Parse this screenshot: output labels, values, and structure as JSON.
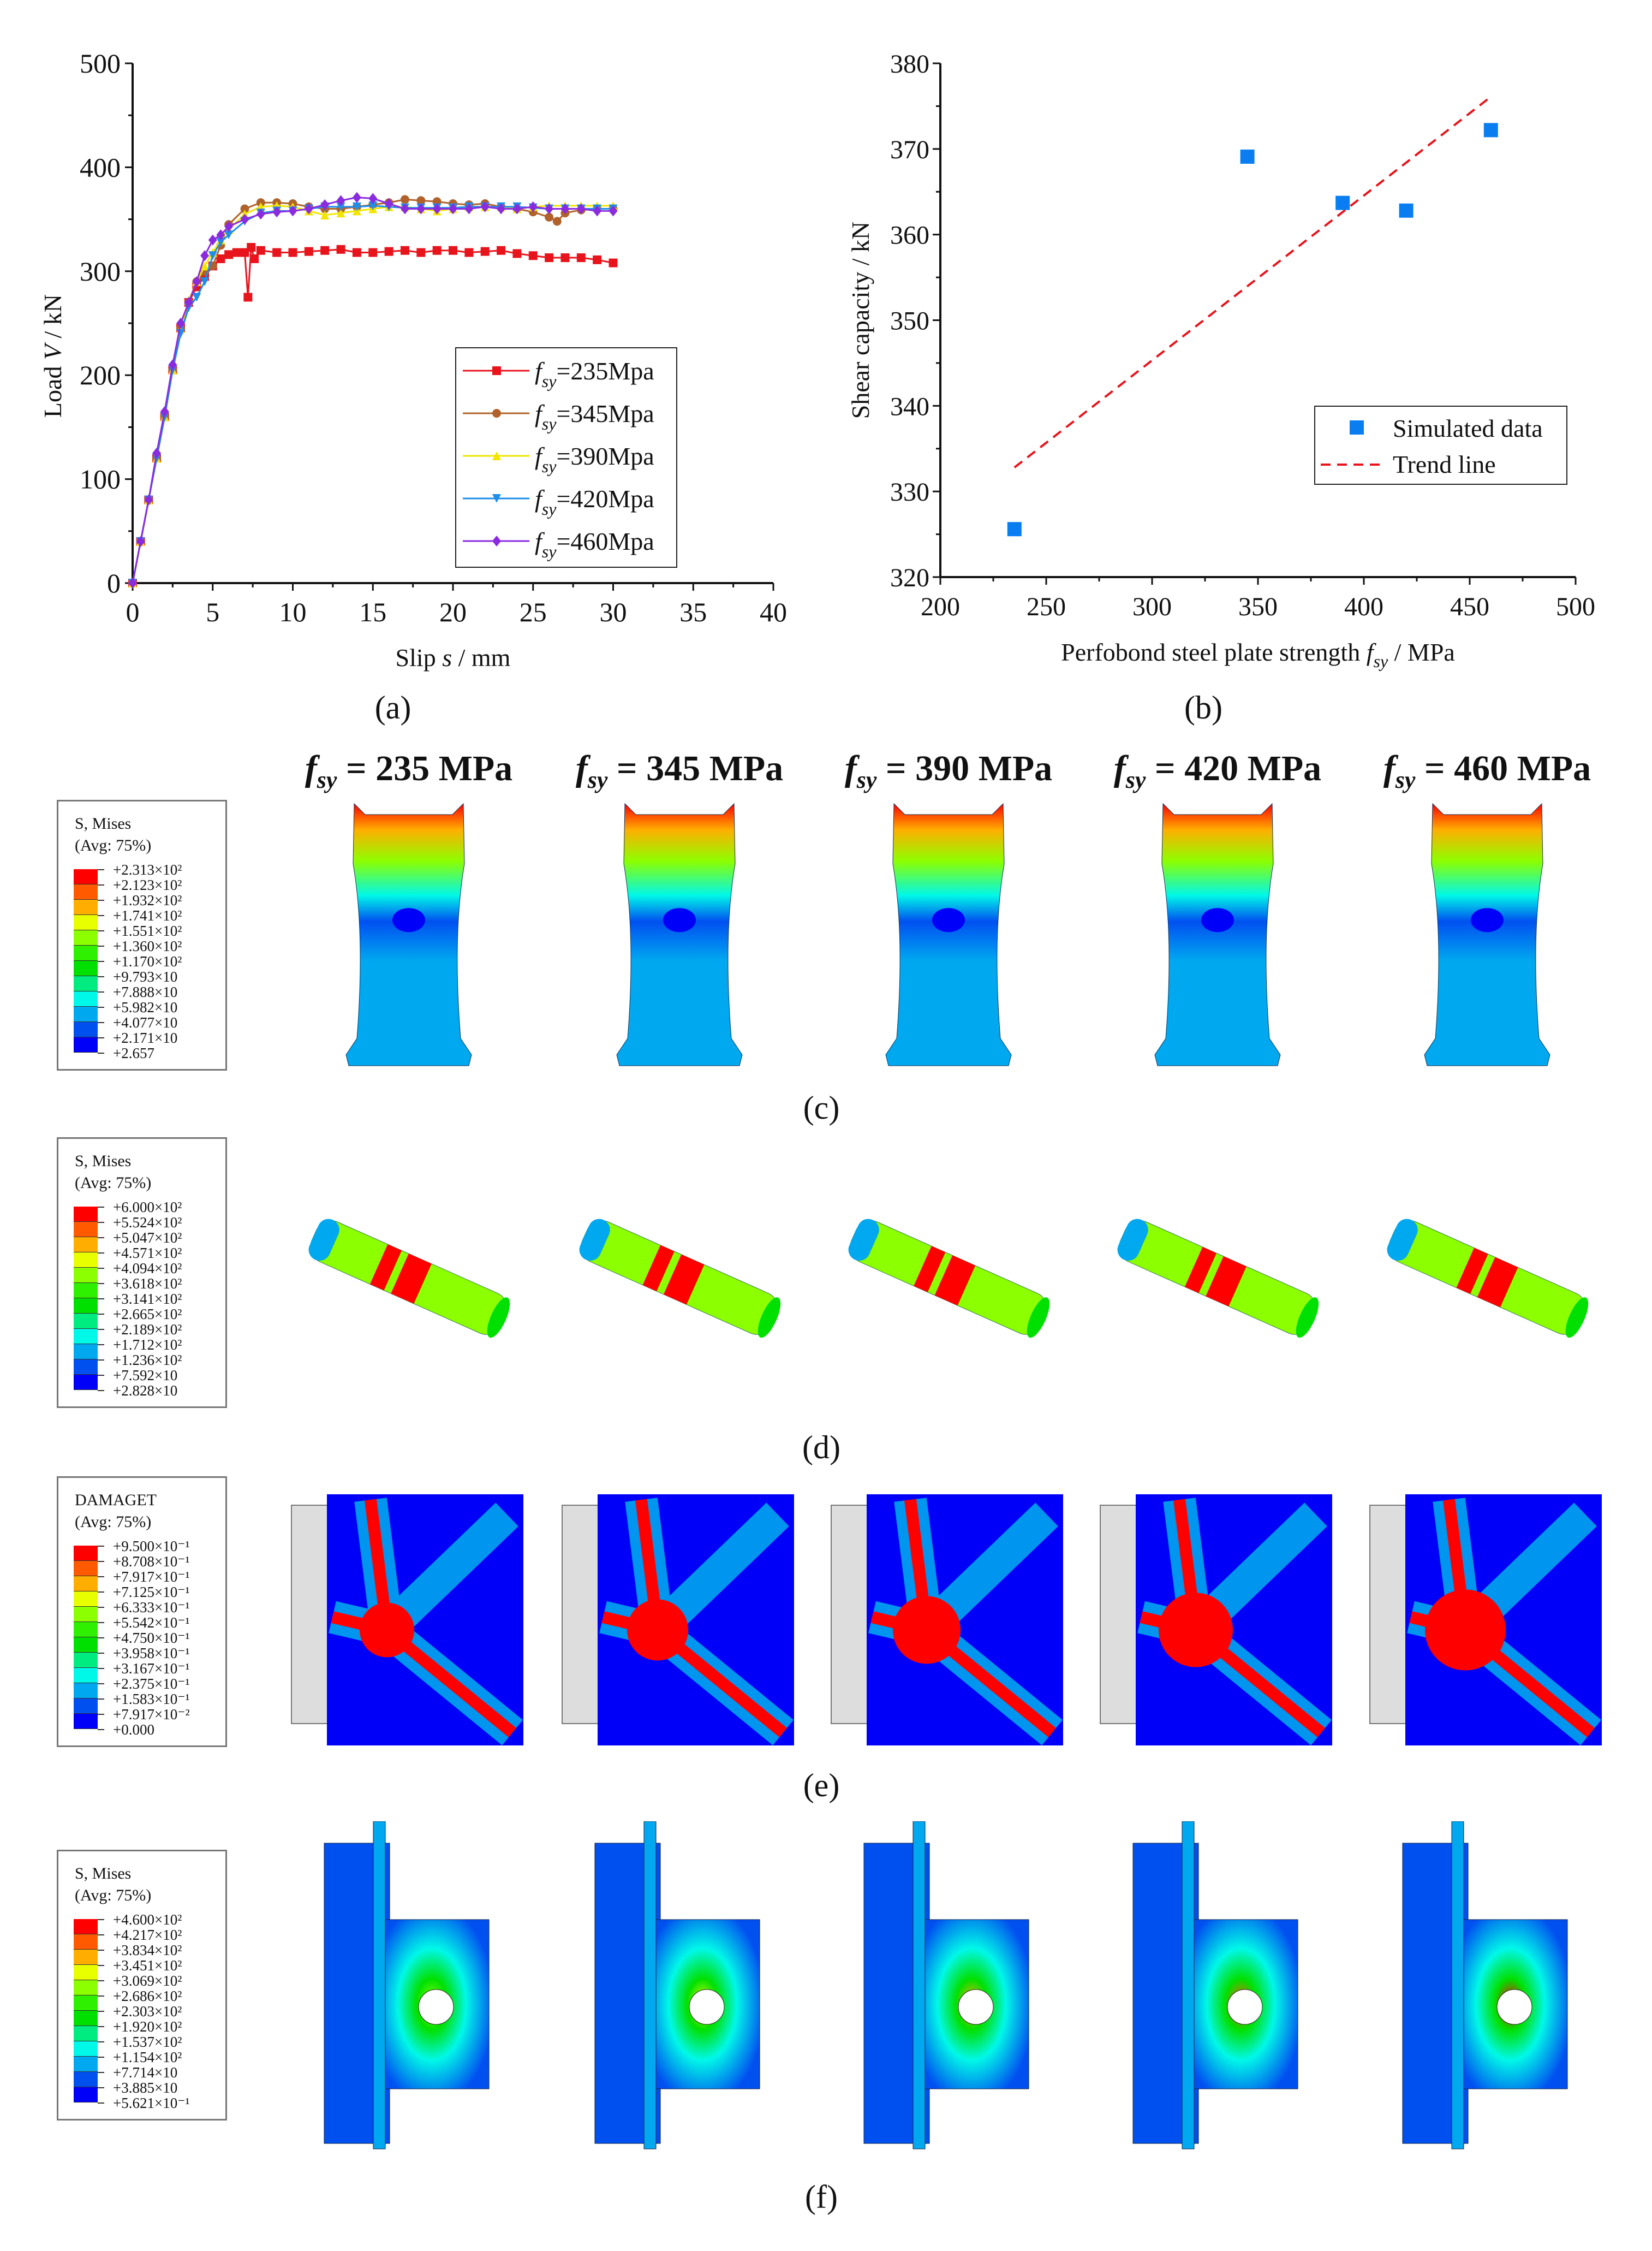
{
  "chart_data": [
    {
      "id": "a",
      "type": "line",
      "panel_label": "(a)",
      "xlabel_pre": "Slip ",
      "xlabel_var": "s",
      "xlabel_post": " / mm",
      "ylabel_pre": "Load ",
      "ylabel_var": "V",
      "ylabel_post": " / kN",
      "xlim": [
        0,
        40
      ],
      "ylim": [
        0,
        500
      ],
      "xticks": [
        0,
        5,
        10,
        15,
        20,
        25,
        30,
        35,
        40
      ],
      "yticks": [
        0,
        100,
        200,
        300,
        400,
        500
      ],
      "legend_position": "bottom-right",
      "series": [
        {
          "name_var": "f",
          "name_sub": "sy",
          "name_rest": "=235Mpa",
          "color": "#e8141c",
          "marker": "square",
          "x": [
            0,
            0.5,
            1,
            1.5,
            2,
            2.5,
            3,
            3.5,
            4,
            4.5,
            5,
            5.5,
            6,
            6.5,
            7,
            7.2,
            7.4,
            7.6,
            8,
            9,
            10,
            11,
            12,
            13,
            14,
            15,
            16,
            17,
            18,
            19,
            20,
            21,
            22,
            23,
            24,
            25,
            26,
            27,
            28,
            29,
            30
          ],
          "y": [
            0,
            40,
            80,
            120,
            160,
            205,
            245,
            270,
            285,
            295,
            305,
            312,
            316,
            318,
            318,
            275,
            323,
            312,
            320,
            318,
            318,
            319,
            320,
            321,
            318,
            318,
            319,
            320,
            318,
            320,
            320,
            318,
            319,
            320,
            317,
            315,
            313,
            313,
            313,
            311,
            308
          ]
        },
        {
          "name_var": "f",
          "name_sub": "sy",
          "name_rest": "=345Mpa",
          "color": "#b0622a",
          "marker": "circle",
          "x": [
            0,
            0.5,
            1,
            1.5,
            2,
            2.5,
            3,
            3.5,
            4,
            4.5,
            5,
            5.5,
            6,
            7,
            8,
            9,
            10,
            11,
            12,
            13,
            14,
            15,
            16,
            17,
            18,
            19,
            20,
            21,
            22,
            23,
            24,
            25,
            26,
            26.5,
            27,
            28,
            29,
            30
          ],
          "y": [
            0,
            40,
            80,
            120,
            160,
            205,
            245,
            270,
            290,
            300,
            305,
            325,
            345,
            360,
            366,
            366,
            365,
            362,
            360,
            360,
            362,
            364,
            366,
            369,
            368,
            367,
            365,
            364,
            365,
            362,
            360,
            357,
            352,
            348,
            356,
            359,
            360,
            360
          ]
        },
        {
          "name_var": "f",
          "name_sub": "sy",
          "name_rest": "=390Mpa",
          "color": "#f2e600",
          "marker": "triangle-up",
          "x": [
            0,
            0.5,
            1,
            1.5,
            2,
            2.5,
            3,
            3.5,
            4,
            4.5,
            5,
            5.5,
            6,
            7,
            8,
            9,
            10,
            11,
            12,
            13,
            14,
            15,
            16,
            17,
            18,
            19,
            20,
            21,
            22,
            23,
            24,
            25,
            26,
            27,
            28,
            29,
            30
          ],
          "y": [
            0,
            40,
            80,
            120,
            160,
            205,
            245,
            272,
            290,
            305,
            318,
            330,
            340,
            355,
            362,
            363,
            362,
            358,
            354,
            356,
            358,
            360,
            362,
            362,
            360,
            358,
            360,
            362,
            362,
            362,
            360,
            362,
            363,
            363,
            363,
            363,
            363
          ]
        },
        {
          "name_var": "f",
          "name_sub": "sy",
          "name_rest": "=420Mpa",
          "color": "#1e8ee8",
          "marker": "triangle-down",
          "x": [
            0,
            0.5,
            1,
            1.5,
            2,
            2.5,
            3,
            3.5,
            4,
            4.5,
            5,
            5.5,
            6,
            7,
            8,
            9,
            10,
            11,
            12,
            13,
            14,
            15,
            16,
            17,
            18,
            19,
            20,
            21,
            22,
            23,
            24,
            25,
            26,
            27,
            28,
            29,
            30
          ],
          "y": [
            0,
            40,
            80,
            120,
            160,
            205,
            240,
            265,
            275,
            290,
            315,
            328,
            335,
            348,
            356,
            358,
            358,
            360,
            362,
            362,
            362,
            363,
            362,
            361,
            361,
            361,
            361,
            362,
            362,
            362,
            362,
            361,
            360,
            360,
            360,
            360,
            360
          ]
        },
        {
          "name_var": "f",
          "name_sub": "sy",
          "name_rest": "=460Mpa",
          "color": "#8b2be0",
          "marker": "diamond",
          "x": [
            0,
            0.5,
            1,
            1.5,
            2,
            2.5,
            3,
            3.5,
            4,
            4.5,
            5,
            5.5,
            6,
            7,
            8,
            9,
            10,
            11,
            12,
            13,
            14,
            15,
            16,
            17,
            18,
            19,
            20,
            21,
            22,
            23,
            24,
            25,
            26,
            27,
            28,
            29,
            30
          ],
          "y": [
            0,
            40,
            80,
            125,
            165,
            210,
            250,
            270,
            290,
            315,
            330,
            335,
            343,
            350,
            355,
            357,
            358,
            360,
            364,
            368,
            371,
            370,
            365,
            360,
            360,
            360,
            360,
            360,
            362,
            360,
            360,
            362,
            360,
            360,
            360,
            358,
            358
          ]
        }
      ]
    },
    {
      "id": "b",
      "type": "scatter",
      "panel_label": "(b)",
      "xlabel_pre": "Perfobond steel plate strength  ",
      "xlabel_var": "f",
      "xlabel_sub": "sy",
      "xlabel_post": " / MPa",
      "ylabel": "Shear capacity / kN",
      "xlim": [
        200,
        500
      ],
      "ylim": [
        320,
        380
      ],
      "xticks": [
        200,
        250,
        300,
        350,
        400,
        450,
        500
      ],
      "yticks": [
        320,
        330,
        340,
        350,
        360,
        370,
        380
      ],
      "legend_position": "lower-right",
      "series": [
        {
          "name": "Simulated data",
          "color": "#0a7ef0",
          "marker": "square",
          "x": [
            235,
            345,
            390,
            420,
            460
          ],
          "y": [
            325.6,
            369.1,
            363.7,
            362.8,
            372.2
          ]
        },
        {
          "name": "Trend line",
          "color": "#e8141c",
          "style": "dashed",
          "x": [
            235,
            460
          ],
          "y": [
            332.8,
            376.1
          ]
        }
      ]
    }
  ],
  "columns": [
    {
      "var": "f",
      "sub": "sy",
      "rest": " = 235 MPa"
    },
    {
      "var": "f",
      "sub": "sy",
      "rest": " = 345 MPa"
    },
    {
      "var": "f",
      "sub": "sy",
      "rest": " = 390 MPa"
    },
    {
      "var": "f",
      "sub": "sy",
      "rest": " = 420 MPa"
    },
    {
      "var": "f",
      "sub": "sy",
      "rest": " = 460 MPa"
    }
  ],
  "band_colors": [
    "#ff0000",
    "#ff5a00",
    "#ffae00",
    "#e8ff00",
    "#8cff00",
    "#2ef000",
    "#00e000",
    "#00ec80",
    "#00f8e8",
    "#00a8f0",
    "#0050f0",
    "#0000f8"
  ],
  "rows": [
    {
      "id": "c",
      "panel_label": "(c)",
      "legend_title": "S,  Mises",
      "legend_avg": "(Avg: 75%)",
      "legend_values": [
        "+2.313×10²",
        "+2.123×10²",
        "+1.932×10²",
        "+1.741×10²",
        "+1.551×10²",
        "+1.360×10²",
        "+1.170×10²",
        "+9.793×10",
        "+7.888×10",
        "+5.982×10",
        "+4.077×10",
        "+2.171×10",
        "+2.657"
      ]
    },
    {
      "id": "d",
      "panel_label": "(d)",
      "legend_title": "S,  Mises",
      "legend_avg": "(Avg: 75%)",
      "legend_values": [
        "+6.000×10²",
        "+5.524×10²",
        "+5.047×10²",
        "+4.571×10²",
        "+4.094×10²",
        "+3.618×10²",
        "+3.141×10²",
        "+2.665×10²",
        "+2.189×10²",
        "+1.712×10²",
        "+1.236×10²",
        "+7.592×10",
        "+2.828×10"
      ]
    },
    {
      "id": "e",
      "panel_label": "(e)",
      "legend_title": "DAMAGET",
      "legend_avg": "(Avg: 75%)",
      "legend_values": [
        "+9.500×10⁻¹",
        "+8.708×10⁻¹",
        "+7.917×10⁻¹",
        "+7.125×10⁻¹",
        "+6.333×10⁻¹",
        "+5.542×10⁻¹",
        "+4.750×10⁻¹",
        "+3.958×10⁻¹",
        "+3.167×10⁻¹",
        "+2.375×10⁻¹",
        "+1.583×10⁻¹",
        "+7.917×10⁻²",
        "+0.000"
      ]
    },
    {
      "id": "f",
      "panel_label": "(f)",
      "legend_title": "S,  Mises",
      "legend_avg": "(Avg: 75%)",
      "legend_values": [
        "+4.600×10²",
        "+4.217×10²",
        "+3.834×10²",
        "+3.451×10²",
        "+3.069×10²",
        "+2.686×10²",
        "+2.303×10²",
        "+1.920×10²",
        "+1.537×10²",
        "+1.154×10²",
        "+7.714×10",
        "+3.885×10",
        "+5.621×10⁻¹"
      ]
    }
  ]
}
